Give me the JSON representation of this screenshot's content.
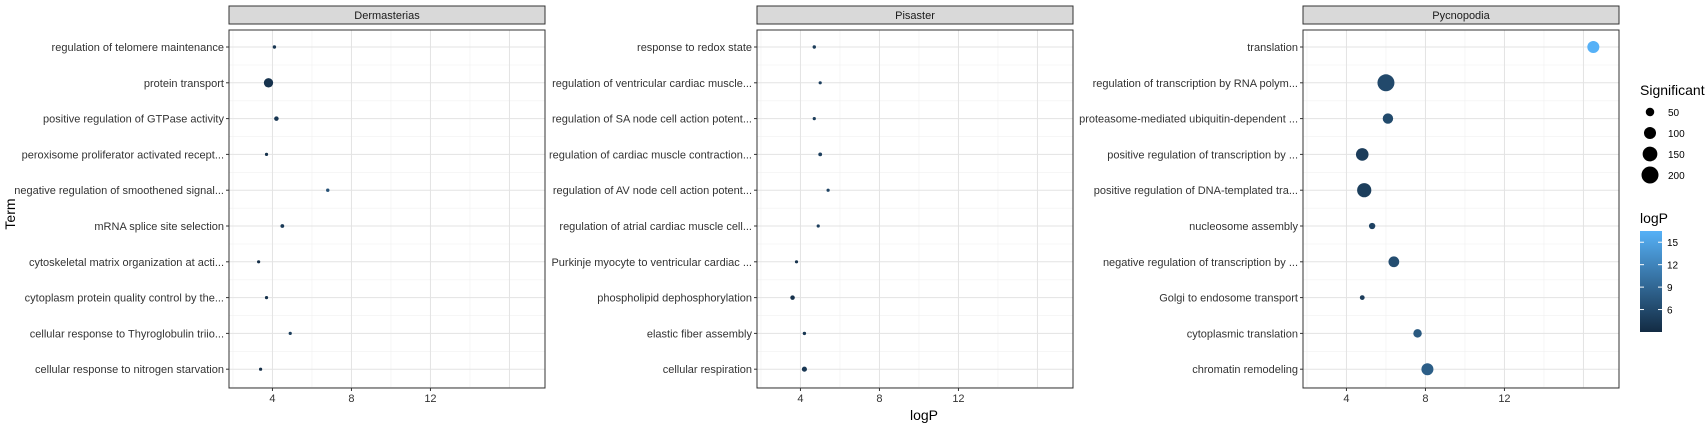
{
  "chart_data": {
    "type": "scatter",
    "xlabel": "logP",
    "ylabel": "Term",
    "xlim": [
      1.8,
      17.8
    ],
    "xticks": [
      4,
      8,
      12
    ],
    "grid": true,
    "legend_position": "right",
    "panels": [
      {
        "name": "Dermasterias",
        "points": [
          {
            "term": "regulation of telomere maintenance",
            "logP": 4.1,
            "significant": 8
          },
          {
            "term": "protein transport",
            "logP": 3.8,
            "significant": 60
          },
          {
            "term": "positive regulation of GTPase activity",
            "logP": 4.2,
            "significant": 14
          },
          {
            "term": "peroxisome proliferator activated recept...",
            "logP": 3.7,
            "significant": 6
          },
          {
            "term": "negative regulation of smoothened signal...",
            "logP": 6.8,
            "significant": 8
          },
          {
            "term": "mRNA splice site selection",
            "logP": 4.5,
            "significant": 10
          },
          {
            "term": "cytoskeletal matrix organization at acti...",
            "logP": 3.3,
            "significant": 4
          },
          {
            "term": "cytoplasm protein quality control by the...",
            "logP": 3.7,
            "significant": 6
          },
          {
            "term": "cellular response to Thyroglobulin triio...",
            "logP": 4.9,
            "significant": 6
          },
          {
            "term": "cellular response to nitrogen starvation",
            "logP": 3.4,
            "significant": 6
          }
        ]
      },
      {
        "name": "Pisaster",
        "points": [
          {
            "term": "response to redox state",
            "logP": 4.7,
            "significant": 8
          },
          {
            "term": "regulation of ventricular cardiac muscle...",
            "logP": 5.0,
            "significant": 7
          },
          {
            "term": "regulation of SA node cell action potent...",
            "logP": 4.7,
            "significant": 7
          },
          {
            "term": "regulation of cardiac muscle contraction...",
            "logP": 5.0,
            "significant": 10
          },
          {
            "term": "regulation of AV node cell action potent...",
            "logP": 5.4,
            "significant": 7
          },
          {
            "term": "regulation of atrial cardiac muscle cell...",
            "logP": 4.9,
            "significant": 7
          },
          {
            "term": "Purkinje myocyte to ventricular cardiac ...",
            "logP": 3.8,
            "significant": 6
          },
          {
            "term": "phospholipid dephosphorylation",
            "logP": 3.6,
            "significant": 14
          },
          {
            "term": "elastic fiber assembly",
            "logP": 4.2,
            "significant": 8
          },
          {
            "term": "cellular respiration",
            "logP": 4.2,
            "significant": 18
          }
        ]
      },
      {
        "name": "Pycnopodia",
        "points": [
          {
            "term": "translation",
            "logP": 16.5,
            "significant": 100
          },
          {
            "term": "regulation of transcription by RNA polym...",
            "logP": 6.0,
            "significant": 200
          },
          {
            "term": "proteasome-mediated ubiquitin-dependent ...",
            "logP": 6.1,
            "significant": 75
          },
          {
            "term": "positive regulation of transcription by ...",
            "logP": 4.8,
            "significant": 110
          },
          {
            "term": "positive regulation of DNA-templated tra...",
            "logP": 4.9,
            "significant": 140
          },
          {
            "term": "nucleosome assembly",
            "logP": 5.3,
            "significant": 28
          },
          {
            "term": "negative regulation of transcription by ...",
            "logP": 6.4,
            "significant": 80
          },
          {
            "term": "Golgi to endosome transport",
            "logP": 4.8,
            "significant": 16
          },
          {
            "term": "cytoplasmic translation",
            "logP": 7.6,
            "significant": 50
          },
          {
            "term": "chromatin remodeling",
            "logP": 8.1,
            "significant": 100
          }
        ]
      }
    ],
    "size_legend": {
      "title": "Significant",
      "breaks": [
        50,
        100,
        150,
        200
      ]
    },
    "color_legend": {
      "title": "logP",
      "breaks": [
        6,
        9,
        12,
        15
      ],
      "range": [
        3,
        16.5
      ],
      "low_color": "#132B43",
      "high_color": "#56B1F7"
    }
  }
}
